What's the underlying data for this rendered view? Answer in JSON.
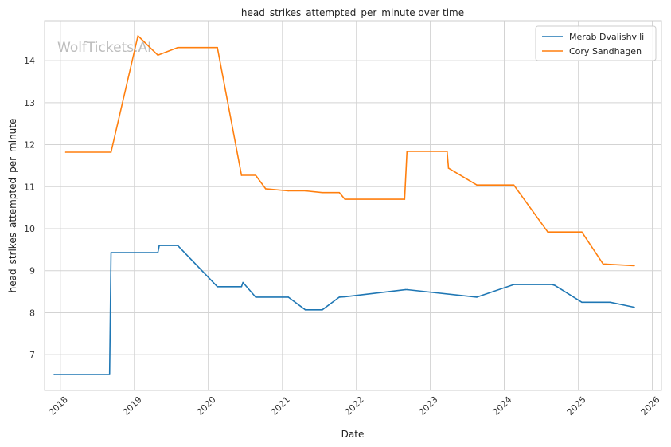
{
  "chart_data": {
    "type": "line",
    "title": "head_strikes_attempted_per_minute over time",
    "xlabel": "Date",
    "ylabel": "head_strikes_attempted_per_minute",
    "watermark": "WolfTickets.AI",
    "xlim": [
      "2017-10-15",
      "2026-02-15"
    ],
    "ylim": [
      6.15,
      14.95
    ],
    "x_ticks": [
      "2018",
      "2019",
      "2020",
      "2021",
      "2022",
      "2023",
      "2024",
      "2025",
      "2026"
    ],
    "y_ticks": [
      7,
      8,
      9,
      10,
      11,
      12,
      13,
      14
    ],
    "grid": true,
    "legend_position": "top-right",
    "colors": {
      "merab": "#1f77b4",
      "cory": "#ff7f0e",
      "grid": "#d3d3d3",
      "axes": "#cccccc",
      "watermark": "#bdbdbd"
    },
    "series": [
      {
        "name": "Merab Dvalishvili",
        "color": "#1f77b4",
        "points": [
          [
            "2017-12-01",
            6.53
          ],
          [
            "2018-09-01",
            6.53
          ],
          [
            "2018-09-08",
            9.43
          ],
          [
            "2019-04-27",
            9.43
          ],
          [
            "2019-05-04",
            9.6
          ],
          [
            "2019-08-03",
            9.6
          ],
          [
            "2020-02-15",
            8.62
          ],
          [
            "2020-06-13",
            8.62
          ],
          [
            "2020-06-20",
            8.72
          ],
          [
            "2020-08-22",
            8.37
          ],
          [
            "2021-01-30",
            8.37
          ],
          [
            "2021-04-24",
            8.07
          ],
          [
            "2021-07-17",
            8.07
          ],
          [
            "2021-10-09",
            8.37
          ],
          [
            "2021-11-06",
            8.38
          ],
          [
            "2022-09-01",
            8.55
          ],
          [
            "2022-09-08",
            8.55
          ],
          [
            "2023-08-19",
            8.37
          ],
          [
            "2024-02-17",
            8.67
          ],
          [
            "2024-08-24",
            8.67
          ],
          [
            "2024-09-07",
            8.65
          ],
          [
            "2025-01-18",
            8.25
          ],
          [
            "2025-06-07",
            8.25
          ],
          [
            "2025-10-04",
            8.13
          ]
        ]
      },
      {
        "name": "Cory Sandhagen",
        "color": "#ff7f0e",
        "points": [
          [
            "2018-01-27",
            11.82
          ],
          [
            "2018-09-08",
            11.82
          ],
          [
            "2019-01-19",
            14.59
          ],
          [
            "2019-04-27",
            14.13
          ],
          [
            "2019-08-03",
            14.31
          ],
          [
            "2020-02-15",
            14.31
          ],
          [
            "2020-06-13",
            11.27
          ],
          [
            "2020-08-22",
            11.27
          ],
          [
            "2020-10-10",
            10.95
          ],
          [
            "2021-01-30",
            10.9
          ],
          [
            "2021-04-24",
            10.9
          ],
          [
            "2021-07-17",
            10.86
          ],
          [
            "2021-10-09",
            10.86
          ],
          [
            "2021-11-06",
            10.7
          ],
          [
            "2022-08-27",
            10.7
          ],
          [
            "2022-09-08",
            11.84
          ],
          [
            "2023-03-25",
            11.84
          ],
          [
            "2023-04-01",
            11.44
          ],
          [
            "2023-08-19",
            11.04
          ],
          [
            "2024-02-17",
            11.04
          ],
          [
            "2024-08-03",
            9.92
          ],
          [
            "2025-01-18",
            9.92
          ],
          [
            "2025-05-03",
            9.16
          ],
          [
            "2025-10-04",
            9.12
          ]
        ]
      }
    ]
  }
}
